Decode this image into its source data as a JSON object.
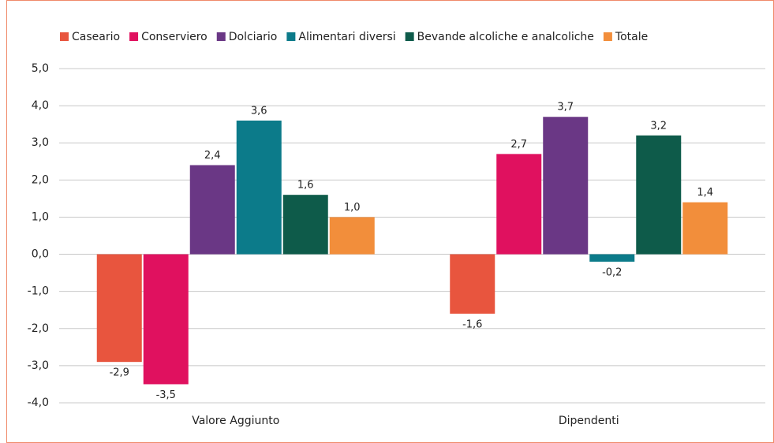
{
  "chart_data": {
    "type": "bar",
    "categories": [
      "Valore Aggiunto",
      "Dipendenti"
    ],
    "series": [
      {
        "name": "Caseario",
        "color": "#e8553e",
        "values": [
          -2.9,
          -1.6
        ],
        "value_labels": [
          "-2,9",
          "-1,6"
        ]
      },
      {
        "name": "Conserviero",
        "color": "#e0115f",
        "values": [
          -3.5,
          2.7
        ],
        "value_labels": [
          "-3,5",
          "2,7"
        ]
      },
      {
        "name": "Dolciario",
        "color": "#6a3785",
        "values": [
          2.4,
          3.7
        ],
        "value_labels": [
          "2,4",
          "3,7"
        ]
      },
      {
        "name": "Alimentari diversi",
        "color": "#0c7b8a",
        "values": [
          3.6,
          -0.2
        ],
        "value_labels": [
          "3,6",
          "-0,2"
        ]
      },
      {
        "name": "Bevande alcoliche e analcoliche",
        "color": "#0e5b4a",
        "values": [
          1.6,
          3.2
        ],
        "value_labels": [
          "1,6",
          "3,2"
        ]
      },
      {
        "name": "Totale",
        "color": "#f28e3b",
        "values": [
          1.0,
          1.4
        ],
        "value_labels": [
          "1,0",
          "1,4"
        ]
      }
    ],
    "ylim": [
      -4,
      5
    ],
    "yticks": [
      {
        "value": -4,
        "label": "-4,0"
      },
      {
        "value": -3,
        "label": "-3,0"
      },
      {
        "value": -2,
        "label": "-2,0"
      },
      {
        "value": -1,
        "label": "-1,0"
      },
      {
        "value": 0,
        "label": "0,0"
      },
      {
        "value": 1,
        "label": "1,0"
      },
      {
        "value": 2,
        "label": "2,0"
      },
      {
        "value": 3,
        "label": "3,0"
      },
      {
        "value": 4,
        "label": "4,0"
      },
      {
        "value": 5,
        "label": "5,0"
      }
    ],
    "grid": true,
    "legend": "top"
  }
}
